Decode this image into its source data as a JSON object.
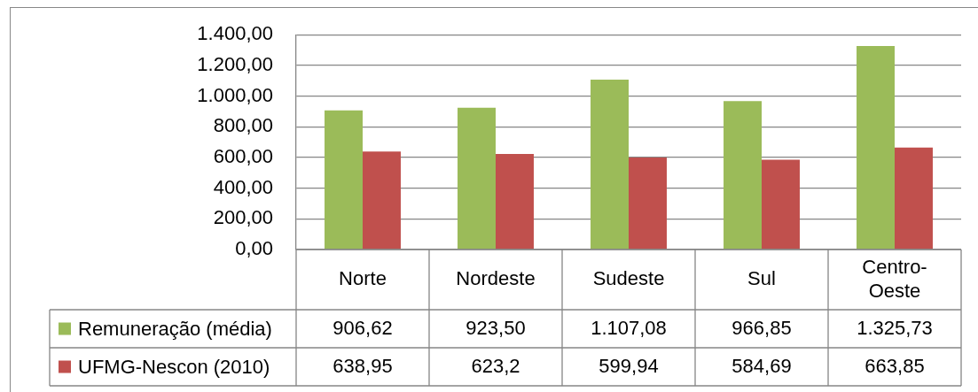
{
  "chart_data": {
    "type": "bar",
    "categories": [
      "Norte",
      "Nordeste",
      "Sudeste",
      "Sul",
      "Centro-Oeste"
    ],
    "series": [
      {
        "name": "Remuneração (média)",
        "color": "#9bbb59",
        "values": [
          906.62,
          923.5,
          1107.08,
          966.85,
          1325.73
        ],
        "value_labels": [
          "906,62",
          "923,50",
          "1.107,08",
          "966,85",
          "1.325,73"
        ]
      },
      {
        "name": "UFMG-Nescon (2010)",
        "color": "#c0504d",
        "values": [
          638.95,
          623.2,
          599.94,
          584.69,
          663.85
        ],
        "value_labels": [
          "638,95",
          "623,2",
          "599,94",
          "584,69",
          "663,85"
        ]
      }
    ],
    "ylim": [
      0,
      1400
    ],
    "yticks": [
      {
        "value": 0,
        "label": "0,00"
      },
      {
        "value": 200,
        "label": "200,00"
      },
      {
        "value": 400,
        "label": "400,00"
      },
      {
        "value": 600,
        "label": "600,00"
      },
      {
        "value": 800,
        "label": "800,00"
      },
      {
        "value": 1000,
        "label": "1.000,00"
      },
      {
        "value": 1200,
        "label": "1.200,00"
      },
      {
        "value": 1400,
        "label": "1.400,00"
      }
    ],
    "grid": "y",
    "legend": "bottom left"
  }
}
